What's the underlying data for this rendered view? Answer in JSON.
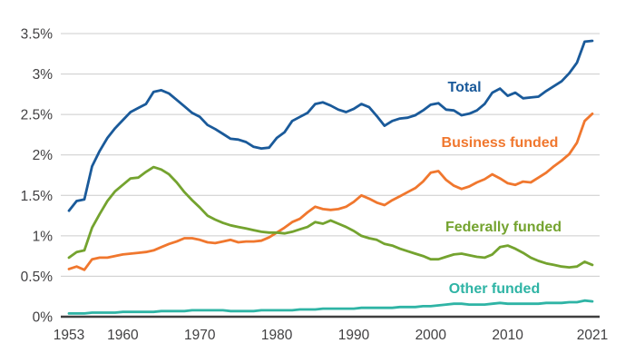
{
  "chart_data": {
    "type": "line",
    "title": "",
    "xlabel": "",
    "ylabel": "",
    "grid": true,
    "legend_position": "inline-labels",
    "ylim": [
      0,
      3.5
    ],
    "yticks": [
      0,
      0.5,
      1,
      1.5,
      2,
      2.5,
      3,
      3.5
    ],
    "ytick_labels": [
      "0%",
      "0.5%",
      "1%",
      "1.5%",
      "2%",
      "2.5%",
      "3%",
      "3.5%"
    ],
    "xticks": [
      1953,
      1960,
      1970,
      1980,
      1990,
      2000,
      2010,
      2021
    ],
    "xtick_labels": [
      "1953",
      "1960",
      "1970",
      "1980",
      "1990",
      "2000",
      "2010",
      "2021"
    ],
    "colors": {
      "grid": "#cccccc",
      "axis": "#3f3f3f",
      "tick_text": "#414042"
    },
    "x": [
      1953,
      1954,
      1955,
      1956,
      1957,
      1958,
      1959,
      1960,
      1961,
      1962,
      1963,
      1964,
      1965,
      1966,
      1967,
      1968,
      1969,
      1970,
      1971,
      1972,
      1973,
      1974,
      1975,
      1976,
      1977,
      1978,
      1979,
      1980,
      1981,
      1982,
      1983,
      1984,
      1985,
      1986,
      1987,
      1988,
      1989,
      1990,
      1991,
      1992,
      1993,
      1994,
      1995,
      1996,
      1997,
      1998,
      1999,
      2000,
      2001,
      2002,
      2003,
      2004,
      2005,
      2006,
      2007,
      2008,
      2009,
      2010,
      2011,
      2012,
      2013,
      2014,
      2015,
      2016,
      2017,
      2018,
      2019,
      2020,
      2021
    ],
    "series": [
      {
        "name": "Total",
        "color": "#1a5a9a",
        "values": [
          1.31,
          1.43,
          1.45,
          1.86,
          2.05,
          2.21,
          2.33,
          2.43,
          2.53,
          2.58,
          2.63,
          2.78,
          2.8,
          2.76,
          2.68,
          2.6,
          2.52,
          2.47,
          2.37,
          2.32,
          2.26,
          2.2,
          2.19,
          2.16,
          2.1,
          2.08,
          2.09,
          2.21,
          2.28,
          2.42,
          2.47,
          2.52,
          2.63,
          2.65,
          2.61,
          2.56,
          2.53,
          2.57,
          2.63,
          2.59,
          2.48,
          2.36,
          2.42,
          2.45,
          2.46,
          2.49,
          2.55,
          2.62,
          2.64,
          2.56,
          2.55,
          2.49,
          2.51,
          2.55,
          2.63,
          2.77,
          2.82,
          2.73,
          2.77,
          2.7,
          2.71,
          2.72,
          2.79,
          2.85,
          2.91,
          3.01,
          3.14,
          3.4,
          3.41
        ]
      },
      {
        "name": "Business funded",
        "color": "#f0772e",
        "values": [
          0.59,
          0.62,
          0.58,
          0.71,
          0.73,
          0.73,
          0.75,
          0.77,
          0.78,
          0.79,
          0.8,
          0.82,
          0.86,
          0.9,
          0.93,
          0.97,
          0.97,
          0.95,
          0.92,
          0.91,
          0.93,
          0.95,
          0.92,
          0.93,
          0.93,
          0.94,
          0.98,
          1.04,
          1.1,
          1.17,
          1.21,
          1.29,
          1.36,
          1.33,
          1.32,
          1.33,
          1.36,
          1.42,
          1.5,
          1.46,
          1.41,
          1.38,
          1.44,
          1.49,
          1.54,
          1.59,
          1.67,
          1.78,
          1.8,
          1.69,
          1.62,
          1.58,
          1.61,
          1.66,
          1.7,
          1.76,
          1.71,
          1.65,
          1.63,
          1.67,
          1.66,
          1.72,
          1.78,
          1.86,
          1.93,
          2.01,
          2.15,
          2.42,
          2.51
        ]
      },
      {
        "name": "Federally funded",
        "color": "#74a32f",
        "values": [
          0.73,
          0.8,
          0.82,
          1.1,
          1.27,
          1.43,
          1.55,
          1.63,
          1.71,
          1.72,
          1.79,
          1.85,
          1.82,
          1.76,
          1.66,
          1.54,
          1.44,
          1.35,
          1.25,
          1.2,
          1.16,
          1.13,
          1.11,
          1.09,
          1.07,
          1.05,
          1.04,
          1.04,
          1.03,
          1.05,
          1.08,
          1.11,
          1.17,
          1.15,
          1.19,
          1.15,
          1.11,
          1.06,
          1.0,
          0.97,
          0.95,
          0.9,
          0.88,
          0.84,
          0.81,
          0.78,
          0.75,
          0.71,
          0.71,
          0.74,
          0.77,
          0.78,
          0.76,
          0.74,
          0.73,
          0.77,
          0.86,
          0.88,
          0.84,
          0.79,
          0.73,
          0.69,
          0.66,
          0.64,
          0.62,
          0.61,
          0.62,
          0.68,
          0.64
        ]
      },
      {
        "name": "Other funded",
        "color": "#2fb4a5",
        "values": [
          0.04,
          0.04,
          0.04,
          0.05,
          0.05,
          0.05,
          0.05,
          0.06,
          0.06,
          0.06,
          0.06,
          0.06,
          0.07,
          0.07,
          0.07,
          0.07,
          0.08,
          0.08,
          0.08,
          0.08,
          0.08,
          0.07,
          0.07,
          0.07,
          0.07,
          0.08,
          0.08,
          0.08,
          0.08,
          0.08,
          0.09,
          0.09,
          0.09,
          0.1,
          0.1,
          0.1,
          0.1,
          0.1,
          0.11,
          0.11,
          0.11,
          0.11,
          0.11,
          0.12,
          0.12,
          0.12,
          0.13,
          0.13,
          0.14,
          0.15,
          0.16,
          0.16,
          0.15,
          0.15,
          0.15,
          0.16,
          0.17,
          0.16,
          0.16,
          0.16,
          0.16,
          0.16,
          0.17,
          0.17,
          0.17,
          0.18,
          0.18,
          0.2,
          0.19
        ]
      }
    ]
  }
}
